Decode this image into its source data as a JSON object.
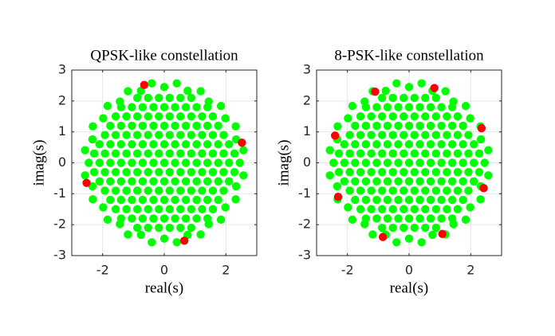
{
  "chart_data": [
    {
      "type": "scatter",
      "title": "QPSK-like constellation",
      "xlabel": "real(s)",
      "ylabel": "imag(s)",
      "xlim": [
        -3,
        3
      ],
      "ylim": [
        -3,
        3
      ],
      "xticks": [
        -2,
        0,
        2
      ],
      "yticks": [
        -3,
        -2,
        -1,
        0,
        1,
        2,
        3
      ],
      "grid": true,
      "series": [
        {
          "color": "#00ff00",
          "x": [
            -0.875,
            -0.525,
            -0.175,
            0.175,
            0.525,
            0.875,
            -1.4,
            -1.05,
            -0.7,
            -0.35,
            0,
            0.35,
            0.7,
            1.05,
            1.4,
            -1.575,
            -1.225,
            -0.875,
            -0.525,
            -0.175,
            0.175,
            0.525,
            0.875,
            1.225,
            1.575,
            -1.75,
            -1.4,
            -1.05,
            -0.7,
            -0.35,
            0,
            0.35,
            0.7,
            1.05,
            1.4,
            1.75,
            -1.925,
            -1.575,
            -1.225,
            -0.875,
            -0.525,
            -0.175,
            0.175,
            0.525,
            0.875,
            1.225,
            1.575,
            1.925,
            -2.1,
            -1.75,
            -1.4,
            -1.05,
            -0.7,
            -0.35,
            0,
            0.35,
            0.7,
            1.05,
            1.4,
            1.75,
            2.1,
            -2.275,
            -1.925,
            -1.575,
            -1.225,
            -0.875,
            -0.525,
            -0.175,
            0.175,
            0.525,
            0.875,
            1.225,
            1.575,
            1.925,
            2.275,
            -2.1,
            -1.75,
            -1.4,
            -1.05,
            -0.7,
            -0.35,
            0,
            0.35,
            0.7,
            1.05,
            1.4,
            1.75,
            2.1,
            -2.275,
            -1.925,
            -1.575,
            -1.225,
            -0.875,
            -0.525,
            -0.175,
            0.175,
            0.525,
            0.875,
            1.225,
            1.575,
            1.925,
            2.275,
            -2.1,
            -1.75,
            -1.4,
            -1.05,
            -0.7,
            -0.35,
            0,
            0.35,
            0.7,
            1.05,
            1.4,
            1.75,
            2.1,
            -1.925,
            -1.575,
            -1.225,
            -0.875,
            -0.525,
            -0.175,
            0.175,
            0.525,
            0.875,
            1.225,
            1.575,
            1.925,
            -1.75,
            -1.4,
            -1.05,
            -0.7,
            -0.35,
            0,
            0.35,
            0.7,
            1.05,
            1.4,
            1.75,
            -1.575,
            -1.225,
            -0.875,
            -0.525,
            -0.175,
            0.175,
            0.525,
            0.875,
            1.225,
            1.575,
            -1.4,
            -1.05,
            -0.7,
            -0.35,
            0,
            0.35,
            0.7,
            1.05,
            1.4,
            -0.875,
            -0.525,
            -0.175,
            0.175,
            0.525,
            0.875,
            2.45,
            2.569,
            2.33,
            2.317,
            1.982,
            1.838,
            1.441,
            1.18,
            0.757,
            0.406,
            0,
            -0.406,
            -0.757,
            -1.18,
            -1.441,
            -1.838,
            -1.982,
            -2.317,
            -2.33,
            -2.569,
            -2.45,
            -2.569,
            -2.33,
            -2.317,
            -1.982,
            -1.838,
            -1.441,
            -1.18,
            -0.757,
            -0.406,
            0,
            0.406,
            0.757,
            1.18,
            1.441,
            1.838,
            1.982,
            2.317,
            2.33,
            2.569
          ],
          "y": [
            2.1,
            2.1,
            2.1,
            2.1,
            2.1,
            2.1,
            1.8,
            1.8,
            1.8,
            1.8,
            1.8,
            1.8,
            1.8,
            1.8,
            1.8,
            1.5,
            1.5,
            1.5,
            1.5,
            1.5,
            1.5,
            1.5,
            1.5,
            1.5,
            1.5,
            1.2,
            1.2,
            1.2,
            1.2,
            1.2,
            1.2,
            1.2,
            1.2,
            1.2,
            1.2,
            1.2,
            0.9,
            0.9,
            0.9,
            0.9,
            0.9,
            0.9,
            0.9,
            0.9,
            0.9,
            0.9,
            0.9,
            0.9,
            0.6,
            0.6,
            0.6,
            0.6,
            0.6,
            0.6,
            0.6,
            0.6,
            0.6,
            0.6,
            0.6,
            0.6,
            0.6,
            0.3,
            0.3,
            0.3,
            0.3,
            0.3,
            0.3,
            0.3,
            0.3,
            0.3,
            0.3,
            0.3,
            0.3,
            0.3,
            0.3,
            0,
            0,
            0,
            0,
            0,
            0,
            0,
            0,
            0,
            0,
            0,
            0,
            0,
            -0.3,
            -0.3,
            -0.3,
            -0.3,
            -0.3,
            -0.3,
            -0.3,
            -0.3,
            -0.3,
            -0.3,
            -0.3,
            -0.3,
            -0.3,
            -0.3,
            -0.6,
            -0.6,
            -0.6,
            -0.6,
            -0.6,
            -0.6,
            -0.6,
            -0.6,
            -0.6,
            -0.6,
            -0.6,
            -0.6,
            -0.6,
            -0.9,
            -0.9,
            -0.9,
            -0.9,
            -0.9,
            -0.9,
            -0.9,
            -0.9,
            -0.9,
            -0.9,
            -0.9,
            -0.9,
            -1.2,
            -1.2,
            -1.2,
            -1.2,
            -1.2,
            -1.2,
            -1.2,
            -1.2,
            -1.2,
            -1.2,
            -1.2,
            -1.5,
            -1.5,
            -1.5,
            -1.5,
            -1.5,
            -1.5,
            -1.5,
            -1.5,
            -1.5,
            -1.5,
            -1.8,
            -1.8,
            -1.8,
            -1.8,
            -1.8,
            -1.8,
            -1.8,
            -1.8,
            -1.8,
            -2.1,
            -2.1,
            -2.1,
            -2.1,
            -2.1,
            -2.1,
            0,
            0.406,
            0.757,
            1.18,
            1.441,
            1.838,
            1.982,
            2.317,
            2.33,
            2.569,
            2.45,
            2.569,
            2.33,
            2.317,
            1.982,
            1.838,
            1.441,
            1.18,
            0.757,
            0.406,
            0,
            -0.406,
            -0.757,
            -1.18,
            -1.441,
            -1.838,
            -1.982,
            -2.317,
            -2.33,
            -2.569,
            -2.45,
            -2.569,
            -2.33,
            -2.317,
            -1.982,
            -1.838,
            -1.441,
            -1.18,
            -0.757,
            -0.406
          ]
        },
        {
          "color": "#ff0000",
          "x": [
            -0.65,
            2.52,
            0.65,
            -2.52
          ],
          "y": [
            2.52,
            0.65,
            -2.52,
            -0.65
          ]
        }
      ]
    },
    {
      "type": "scatter",
      "title": "8-PSK-like constellation",
      "xlabel": "real(s)",
      "ylabel": "imag(s)",
      "xlim": [
        -3,
        3
      ],
      "ylim": [
        -3,
        3
      ],
      "xticks": [
        -2,
        0,
        2
      ],
      "yticks": [
        -3,
        -2,
        -1,
        0,
        1,
        2,
        3
      ],
      "grid": true,
      "series": [
        {
          "color": "#00ff00",
          "x": [
            -0.875,
            -0.525,
            -0.175,
            0.175,
            0.525,
            0.875,
            -1.4,
            -1.05,
            -0.7,
            -0.35,
            0,
            0.35,
            0.7,
            1.05,
            1.4,
            -1.575,
            -1.225,
            -0.875,
            -0.525,
            -0.175,
            0.175,
            0.525,
            0.875,
            1.225,
            1.575,
            -1.75,
            -1.4,
            -1.05,
            -0.7,
            -0.35,
            0,
            0.35,
            0.7,
            1.05,
            1.4,
            1.75,
            -1.925,
            -1.575,
            -1.225,
            -0.875,
            -0.525,
            -0.175,
            0.175,
            0.525,
            0.875,
            1.225,
            1.575,
            1.925,
            -2.1,
            -1.75,
            -1.4,
            -1.05,
            -0.7,
            -0.35,
            0,
            0.35,
            0.7,
            1.05,
            1.4,
            1.75,
            2.1,
            -2.275,
            -1.925,
            -1.575,
            -1.225,
            -0.875,
            -0.525,
            -0.175,
            0.175,
            0.525,
            0.875,
            1.225,
            1.575,
            1.925,
            2.275,
            -2.1,
            -1.75,
            -1.4,
            -1.05,
            -0.7,
            -0.35,
            0,
            0.35,
            0.7,
            1.05,
            1.4,
            1.75,
            2.1,
            -2.275,
            -1.925,
            -1.575,
            -1.225,
            -0.875,
            -0.525,
            -0.175,
            0.175,
            0.525,
            0.875,
            1.225,
            1.575,
            1.925,
            2.275,
            -2.1,
            -1.75,
            -1.4,
            -1.05,
            -0.7,
            -0.35,
            0,
            0.35,
            0.7,
            1.05,
            1.4,
            1.75,
            2.1,
            -1.925,
            -1.575,
            -1.225,
            -0.875,
            -0.525,
            -0.175,
            0.175,
            0.525,
            0.875,
            1.225,
            1.575,
            1.925,
            -1.75,
            -1.4,
            -1.05,
            -0.7,
            -0.35,
            0,
            0.35,
            0.7,
            1.05,
            1.4,
            1.75,
            -1.575,
            -1.225,
            -0.875,
            -0.525,
            -0.175,
            0.175,
            0.525,
            0.875,
            1.225,
            1.575,
            -1.4,
            -1.05,
            -0.7,
            -0.35,
            0,
            0.35,
            0.7,
            1.05,
            1.4,
            -0.875,
            -0.525,
            -0.175,
            0.175,
            0.525,
            0.875,
            2.45,
            2.569,
            2.33,
            2.317,
            1.982,
            1.838,
            1.441,
            1.18,
            0.757,
            0.406,
            0,
            -0.406,
            -0.757,
            -1.18,
            -1.441,
            -1.838,
            -1.982,
            -2.317,
            -2.33,
            -2.569,
            -2.45,
            -2.569,
            -2.33,
            -2.317,
            -1.982,
            -1.838,
            -1.441,
            -1.18,
            -0.757,
            -0.406,
            0,
            0.406,
            0.757,
            1.18,
            1.441,
            1.838,
            1.982,
            2.317,
            2.33,
            2.569
          ],
          "y": [
            2.1,
            2.1,
            2.1,
            2.1,
            2.1,
            2.1,
            1.8,
            1.8,
            1.8,
            1.8,
            1.8,
            1.8,
            1.8,
            1.8,
            1.8,
            1.5,
            1.5,
            1.5,
            1.5,
            1.5,
            1.5,
            1.5,
            1.5,
            1.5,
            1.5,
            1.2,
            1.2,
            1.2,
            1.2,
            1.2,
            1.2,
            1.2,
            1.2,
            1.2,
            1.2,
            1.2,
            0.9,
            0.9,
            0.9,
            0.9,
            0.9,
            0.9,
            0.9,
            0.9,
            0.9,
            0.9,
            0.9,
            0.9,
            0.6,
            0.6,
            0.6,
            0.6,
            0.6,
            0.6,
            0.6,
            0.6,
            0.6,
            0.6,
            0.6,
            0.6,
            0.6,
            0.3,
            0.3,
            0.3,
            0.3,
            0.3,
            0.3,
            0.3,
            0.3,
            0.3,
            0.3,
            0.3,
            0.3,
            0.3,
            0.3,
            0,
            0,
            0,
            0,
            0,
            0,
            0,
            0,
            0,
            0,
            0,
            0,
            0,
            -0.3,
            -0.3,
            -0.3,
            -0.3,
            -0.3,
            -0.3,
            -0.3,
            -0.3,
            -0.3,
            -0.3,
            -0.3,
            -0.3,
            -0.3,
            -0.3,
            -0.6,
            -0.6,
            -0.6,
            -0.6,
            -0.6,
            -0.6,
            -0.6,
            -0.6,
            -0.6,
            -0.6,
            -0.6,
            -0.6,
            -0.6,
            -0.9,
            -0.9,
            -0.9,
            -0.9,
            -0.9,
            -0.9,
            -0.9,
            -0.9,
            -0.9,
            -0.9,
            -0.9,
            -0.9,
            -1.2,
            -1.2,
            -1.2,
            -1.2,
            -1.2,
            -1.2,
            -1.2,
            -1.2,
            -1.2,
            -1.2,
            -1.2,
            -1.5,
            -1.5,
            -1.5,
            -1.5,
            -1.5,
            -1.5,
            -1.5,
            -1.5,
            -1.5,
            -1.5,
            -1.8,
            -1.8,
            -1.8,
            -1.8,
            -1.8,
            -1.8,
            -1.8,
            -1.8,
            -1.8,
            -2.1,
            -2.1,
            -2.1,
            -2.1,
            -2.1,
            -2.1,
            0,
            0.406,
            0.757,
            1.18,
            1.441,
            1.838,
            1.982,
            2.317,
            2.33,
            2.569,
            2.45,
            2.569,
            2.33,
            2.317,
            1.982,
            1.838,
            1.441,
            1.18,
            0.757,
            0.406,
            0,
            -0.406,
            -0.757,
            -1.18,
            -1.441,
            -1.838,
            -1.982,
            -2.317,
            -2.33,
            -2.569,
            -2.45,
            -2.569,
            -2.33,
            -2.317,
            -1.982,
            -1.838,
            -1.441,
            -1.18,
            -0.757,
            -0.406
          ]
        },
        {
          "color": "#ff0000",
          "x": [
            -1.1,
            0.82,
            2.35,
            2.42,
            1.08,
            -0.85,
            -2.3,
            -2.4
          ],
          "y": [
            2.3,
            2.42,
            1.12,
            -0.82,
            -2.3,
            -2.4,
            -1.1,
            0.88
          ]
        }
      ]
    }
  ]
}
